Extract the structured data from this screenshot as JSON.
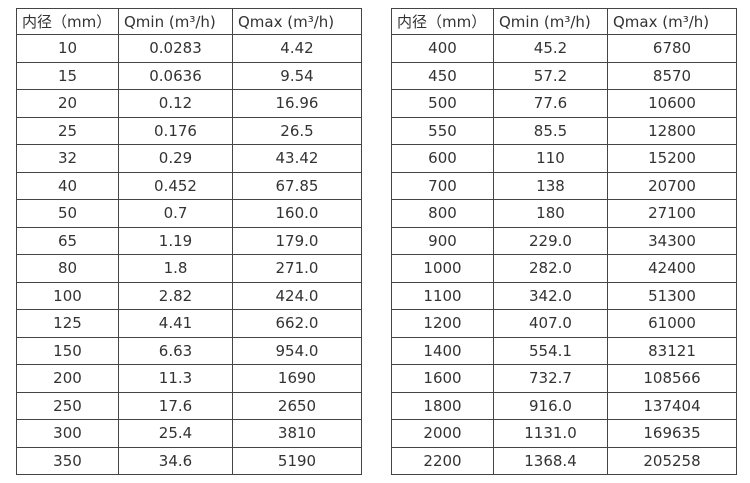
{
  "colors": {
    "background": "#ffffff",
    "border": "#444444",
    "text": "#333333"
  },
  "tables": [
    {
      "name": "flow-rates-small-diameters",
      "headers": [
        "内径（mm）",
        "Qmin (m³/h)",
        "Qmax (m³/h)"
      ],
      "rows": [
        [
          "10",
          "0.0283",
          "4.42"
        ],
        [
          "15",
          "0.0636",
          "9.54"
        ],
        [
          "20",
          "0.12",
          "16.96"
        ],
        [
          "25",
          "0.176",
          "26.5"
        ],
        [
          "32",
          "0.29",
          "43.42"
        ],
        [
          "40",
          "0.452",
          "67.85"
        ],
        [
          "50",
          "0.7",
          "160.0"
        ],
        [
          "65",
          "1.19",
          "179.0"
        ],
        [
          "80",
          "1.8",
          "271.0"
        ],
        [
          "100",
          "2.82",
          "424.0"
        ],
        [
          "125",
          "4.41",
          "662.0"
        ],
        [
          "150",
          "6.63",
          "954.0"
        ],
        [
          "200",
          "11.3",
          "1690"
        ],
        [
          "250",
          "17.6",
          "2650"
        ],
        [
          "300",
          "25.4",
          "3810"
        ],
        [
          "350",
          "34.6",
          "5190"
        ]
      ]
    },
    {
      "name": "flow-rates-large-diameters",
      "headers": [
        "内径（mm）",
        "Qmin (m³/h)",
        "Qmax (m³/h)"
      ],
      "rows": [
        [
          "400",
          "45.2",
          "6780"
        ],
        [
          "450",
          "57.2",
          "8570"
        ],
        [
          "500",
          "77.6",
          "10600"
        ],
        [
          "550",
          "85.5",
          "12800"
        ],
        [
          "600",
          "110",
          "15200"
        ],
        [
          "700",
          "138",
          "20700"
        ],
        [
          "800",
          "180",
          "27100"
        ],
        [
          "900",
          "229.0",
          "34300"
        ],
        [
          "1000",
          "282.0",
          "42400"
        ],
        [
          "1100",
          "342.0",
          "51300"
        ],
        [
          "1200",
          "407.0",
          "61000"
        ],
        [
          "1400",
          "554.1",
          "83121"
        ],
        [
          "1600",
          "732.7",
          "108566"
        ],
        [
          "1800",
          "916.0",
          "137404"
        ],
        [
          "2000",
          "1131.0",
          "169635"
        ],
        [
          "2200",
          "1368.4",
          "205258"
        ]
      ]
    }
  ]
}
